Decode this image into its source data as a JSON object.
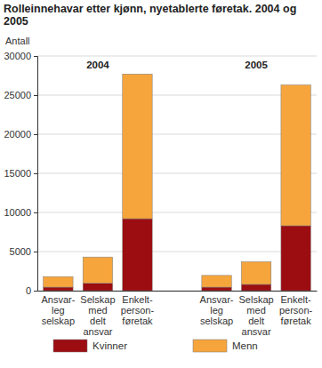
{
  "chart_data": {
    "type": "bar",
    "stacked": true,
    "title": "Rolleinnehavar etter kjønn, nyetablerte føretak. 2004 og 2005",
    "y_label": "Antall",
    "annotations": [
      "2004",
      "2005"
    ],
    "categories": [
      "Ansvar-\nleg\nselskap",
      "Selskap\nmed\ndelt\nansvar",
      "Enkelt-\nperson-\nføretak",
      null,
      "Ansvar-\nleg\nselskap",
      "Selskap\nmed\ndelt\nansvar",
      "Enkelt-\nperson-\nføretak"
    ],
    "series": [
      {
        "name": "Kvinner",
        "color": "#9c0d12",
        "values": [
          450,
          950,
          9200,
          null,
          450,
          800,
          8300
        ]
      },
      {
        "name": "Menn",
        "color": "#f6a53c",
        "values": [
          1350,
          3350,
          18500,
          null,
          1500,
          2900,
          18000
        ]
      }
    ],
    "ylim": [
      0,
      30000
    ],
    "yticks": [
      0,
      5000,
      10000,
      15000,
      20000,
      25000,
      30000
    ],
    "grid": true,
    "legend": "bottom"
  }
}
